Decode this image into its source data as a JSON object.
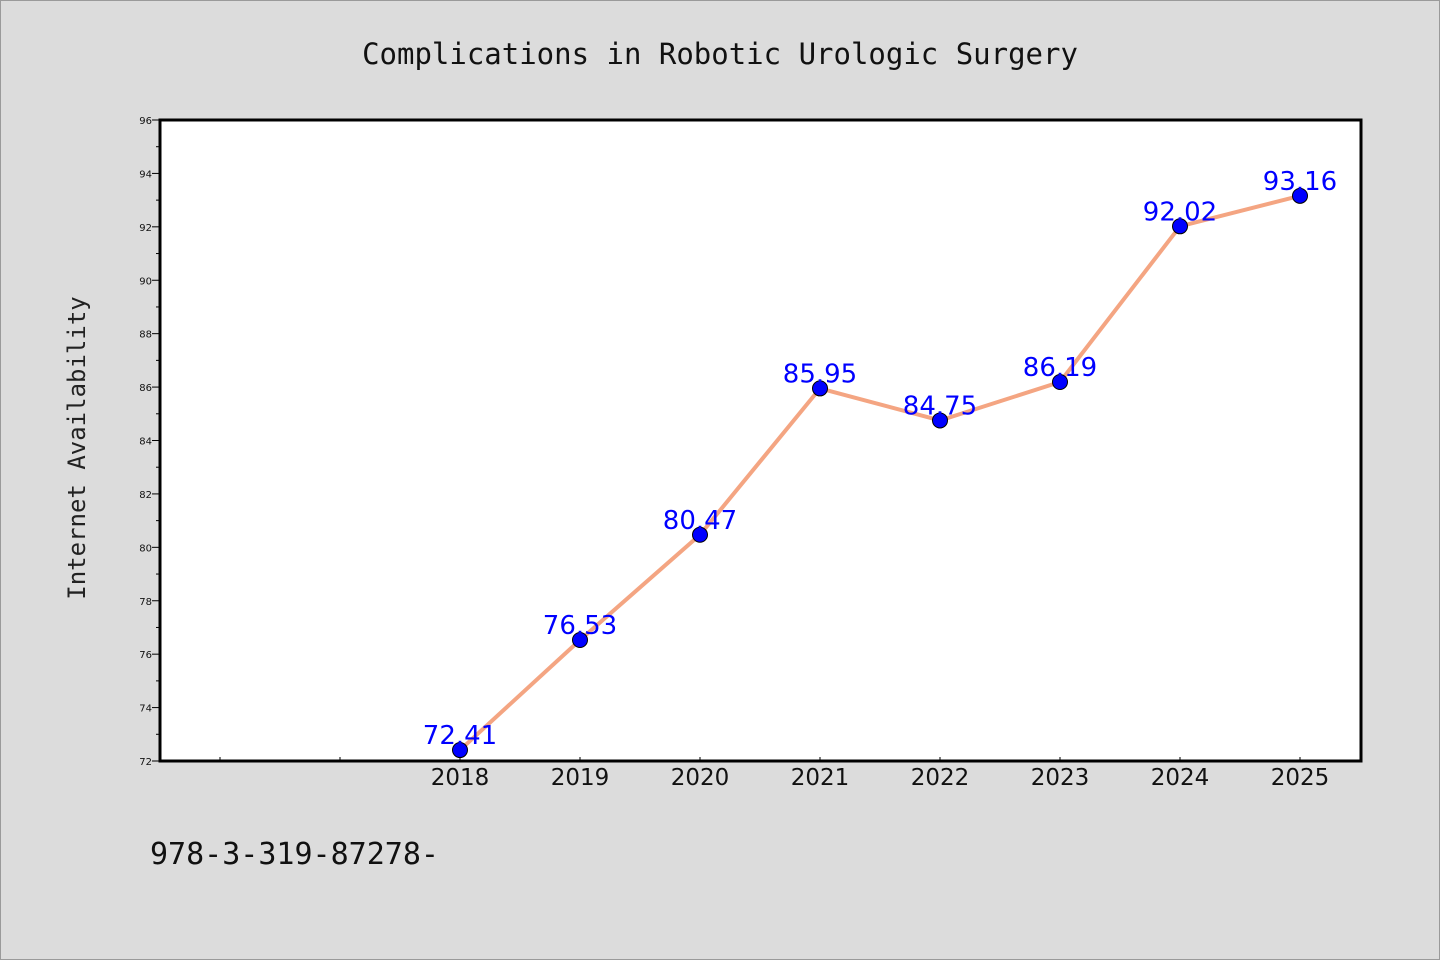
{
  "colors": {
    "background": "#dcdcdc",
    "plot_background": "#ffffff",
    "line": "#f4a582",
    "marker": "#0000ff",
    "data_label": "#0000ff"
  },
  "footnote": "978-3-319-87278-",
  "chart_data": {
    "type": "line",
    "title": "Complications in Robotic Urologic Surgery",
    "xlabel": "",
    "ylabel": "Internet Availability",
    "categories": [
      "",
      "",
      "2018",
      "2019",
      "2020",
      "2021",
      "2022",
      "2023",
      "2024",
      "2025"
    ],
    "series": [
      {
        "values": [
          null,
          null,
          72.41,
          76.53,
          80.47,
          85.95,
          84.75,
          86.19,
          92.02,
          93.16
        ],
        "data_labels": [
          "",
          "",
          "72.41",
          "76.53",
          "80.47",
          "85.95",
          "84.75",
          "86.19",
          "92.02",
          "93.16"
        ]
      }
    ],
    "ylim": [
      72,
      96
    ],
    "yticks": [
      "72",
      "74",
      "76",
      "78",
      "80",
      "82",
      "84",
      "86",
      "88",
      "90",
      "92",
      "94",
      "96"
    ],
    "grid": false,
    "legend": "none"
  }
}
